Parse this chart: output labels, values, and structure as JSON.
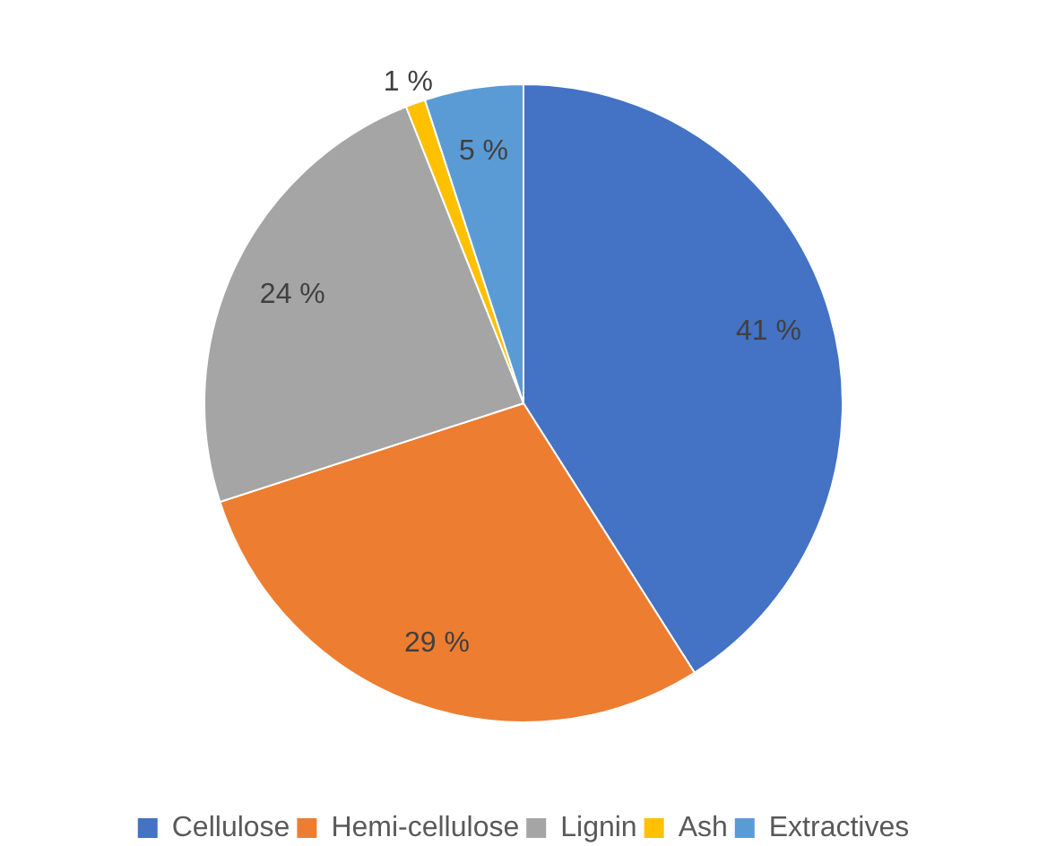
{
  "chart_data": {
    "type": "pie",
    "categories": [
      "Cellulose",
      "Hemi-cellulose",
      "Lignin",
      "Ash",
      "Extractives"
    ],
    "values": [
      41,
      29,
      24,
      1,
      5
    ],
    "colors": [
      "#4472c4",
      "#ed7d31",
      "#a5a5a5",
      "#ffc000",
      "#5b9bd5"
    ],
    "value_labels": [
      "41 %",
      "29 %",
      "24 %",
      "1 %",
      "5 %"
    ],
    "legend": "bottom"
  }
}
